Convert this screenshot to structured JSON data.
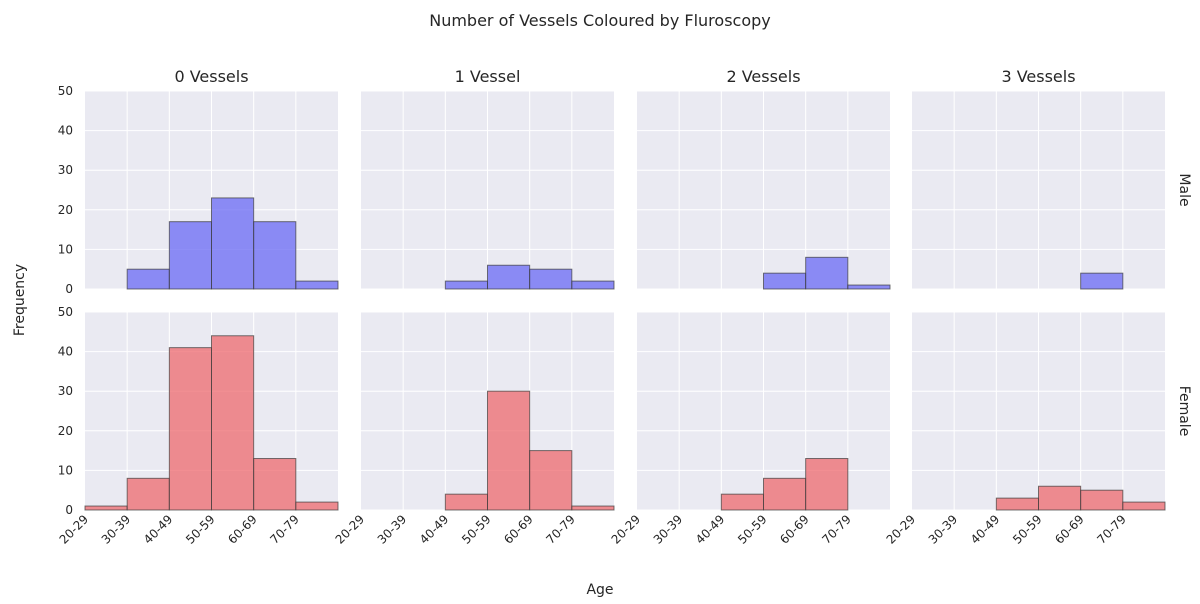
{
  "chart_data": {
    "type": "bar",
    "title": "Number of Vessels Coloured by Fluroscopy",
    "xlabel": "Age",
    "ylabel": "Frequency",
    "ylim": [
      0,
      50
    ],
    "yticks": [
      0,
      10,
      20,
      30,
      40,
      50
    ],
    "categories": [
      "20-29",
      "30-39",
      "40-49",
      "50-59",
      "60-69",
      "70-79"
    ],
    "columns": [
      "0 Vessels",
      "1 Vessel",
      "2 Vessels",
      "3 Vessels"
    ],
    "rows": [
      {
        "label": "Male",
        "color": "#6a6af4"
      },
      {
        "label": "Female",
        "color": "#ee6a6e"
      }
    ],
    "grid": true,
    "panels": [
      {
        "row": "Male",
        "column": "0 Vessels",
        "values": [
          0,
          5,
          17,
          23,
          17,
          2
        ]
      },
      {
        "row": "Male",
        "column": "1 Vessel",
        "values": [
          0,
          0,
          2,
          6,
          5,
          2
        ]
      },
      {
        "row": "Male",
        "column": "2 Vessels",
        "values": [
          0,
          0,
          0,
          4,
          8,
          1
        ]
      },
      {
        "row": "Male",
        "column": "3 Vessels",
        "values": [
          0,
          0,
          0,
          0,
          4,
          0
        ]
      },
      {
        "row": "Female",
        "column": "0 Vessels",
        "values": [
          1,
          8,
          41,
          44,
          13,
          2
        ]
      },
      {
        "row": "Female",
        "column": "1 Vessel",
        "values": [
          0,
          0,
          4,
          30,
          15,
          1
        ]
      },
      {
        "row": "Female",
        "column": "2 Vessels",
        "values": [
          0,
          0,
          4,
          8,
          13,
          0
        ]
      },
      {
        "row": "Female",
        "column": "3 Vessels",
        "values": [
          0,
          0,
          3,
          6,
          5,
          2
        ]
      }
    ]
  }
}
